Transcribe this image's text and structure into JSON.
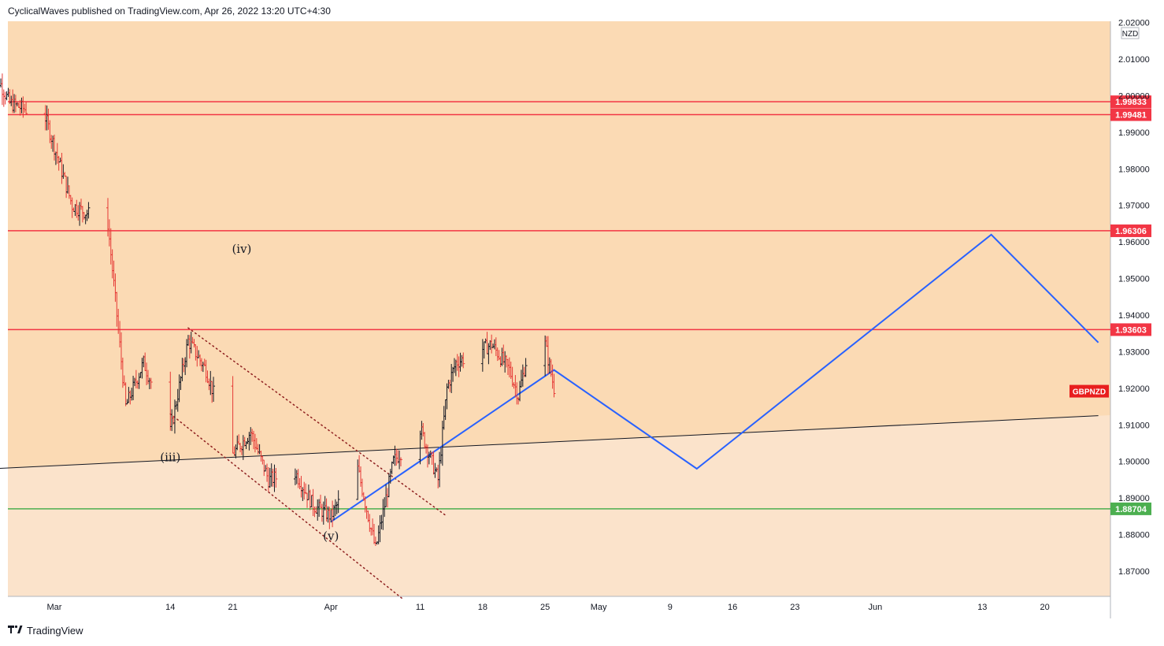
{
  "header": {
    "text": "CyclicalWaves published on TradingView.com, Apr 26, 2022 13:20 UTC+4:30"
  },
  "footer": {
    "brand": "TradingView",
    "logo_icon": "tradingview-logo-icon"
  },
  "colors": {
    "upper_zone": "#fbdab4",
    "lower_zone": "#fbe3cb",
    "resistance": "#f23645",
    "support": "#4caf50",
    "projection": "#2962ff",
    "trendline": "#131722",
    "bar_up": "#131722",
    "bar_down": "#e53935",
    "channel": "#8e1f1f",
    "ticker_bg": "#e81e1e"
  },
  "chart_data": {
    "type": "ohlc",
    "symbol": "GBPNZD",
    "currency": "NZD",
    "y_ticks": [
      "2.02000",
      "2.01000",
      "2.00000",
      "1.99000",
      "1.98000",
      "1.97000",
      "1.96000",
      "1.95000",
      "1.94000",
      "1.93000",
      "1.92000",
      "1.91000",
      "1.90000",
      "1.89000",
      "1.88000",
      "1.87000"
    ],
    "x_ticks": [
      "Mar",
      "14",
      "21",
      "Apr",
      "11",
      "18",
      "25",
      "May",
      "9",
      "16",
      "23",
      "Jun",
      "13",
      "20"
    ],
    "ylim": [
      1.8625,
      2.0215
    ],
    "horizontal_levels": [
      {
        "label": "1.99833",
        "value": 1.99833,
        "role": "resistance"
      },
      {
        "label": "1.99481",
        "value": 1.99481,
        "role": "resistance"
      },
      {
        "label": "1.96306",
        "value": 1.96306,
        "role": "resistance"
      },
      {
        "label": "1.93603",
        "value": 1.93603,
        "role": "resistance"
      },
      {
        "label": "1.88704",
        "value": 1.88704,
        "role": "support"
      }
    ],
    "ticker_label": "GBPNZD",
    "wave_labels": [
      "(iii)",
      "(iv)",
      "(v)"
    ],
    "trendline": {
      "from": {
        "date": "2022-02-22",
        "value": 1.898
      },
      "to": {
        "date": "2022-06-26",
        "value": 1.9125
      }
    },
    "channel_upper": {
      "from": {
        "date": "2022-03-16",
        "value": 1.9365
      },
      "to": {
        "date": "2022-04-14",
        "value": 1.885
      }
    },
    "channel_lower": {
      "from": {
        "date": "2022-03-14",
        "value": 1.913
      },
      "to": {
        "date": "2022-04-09",
        "value": 1.8625
      }
    },
    "projection_path": [
      {
        "date": "2022-04-01",
        "value": 1.8835
      },
      {
        "date": "2022-04-26",
        "value": 1.925
      },
      {
        "date": "2022-05-12",
        "value": 1.898
      },
      {
        "date": "2022-06-14",
        "value": 1.962
      },
      {
        "date": "2022-06-26",
        "value": 1.9325
      }
    ],
    "price_anchors": [
      {
        "date": "2022-02-22",
        "value": 2.008
      },
      {
        "date": "2022-02-24",
        "value": 1.998
      },
      {
        "date": "2022-02-28",
        "value": 1.994
      },
      {
        "date": "2022-03-03",
        "value": 1.97
      },
      {
        "date": "2022-03-07",
        "value": 1.965
      },
      {
        "date": "2022-03-09",
        "value": 1.915
      },
      {
        "date": "2022-03-11",
        "value": 1.927
      },
      {
        "date": "2022-03-14",
        "value": 1.908
      },
      {
        "date": "2022-03-16",
        "value": 1.933
      },
      {
        "date": "2022-03-18",
        "value": 1.925
      },
      {
        "date": "2022-03-21",
        "value": 1.902
      },
      {
        "date": "2022-03-23",
        "value": 1.908
      },
      {
        "date": "2022-03-25",
        "value": 1.895
      },
      {
        "date": "2022-03-28",
        "value": 1.897
      },
      {
        "date": "2022-03-30",
        "value": 1.888
      },
      {
        "date": "2022-04-01",
        "value": 1.885
      },
      {
        "date": "2022-04-04",
        "value": 1.898
      },
      {
        "date": "2022-04-06",
        "value": 1.876
      },
      {
        "date": "2022-04-08",
        "value": 1.9
      },
      {
        "date": "2022-04-11",
        "value": 1.909
      },
      {
        "date": "2022-04-13",
        "value": 1.895
      },
      {
        "date": "2022-04-14",
        "value": 1.92
      },
      {
        "date": "2022-04-15",
        "value": 1.927
      },
      {
        "date": "2022-04-19",
        "value": 1.932
      },
      {
        "date": "2022-04-21",
        "value": 1.925
      },
      {
        "date": "2022-04-22",
        "value": 1.918
      },
      {
        "date": "2022-04-24",
        "value": 1.94
      },
      {
        "date": "2022-04-25",
        "value": 1.932
      },
      {
        "date": "2022-04-26",
        "value": 1.92
      }
    ]
  }
}
